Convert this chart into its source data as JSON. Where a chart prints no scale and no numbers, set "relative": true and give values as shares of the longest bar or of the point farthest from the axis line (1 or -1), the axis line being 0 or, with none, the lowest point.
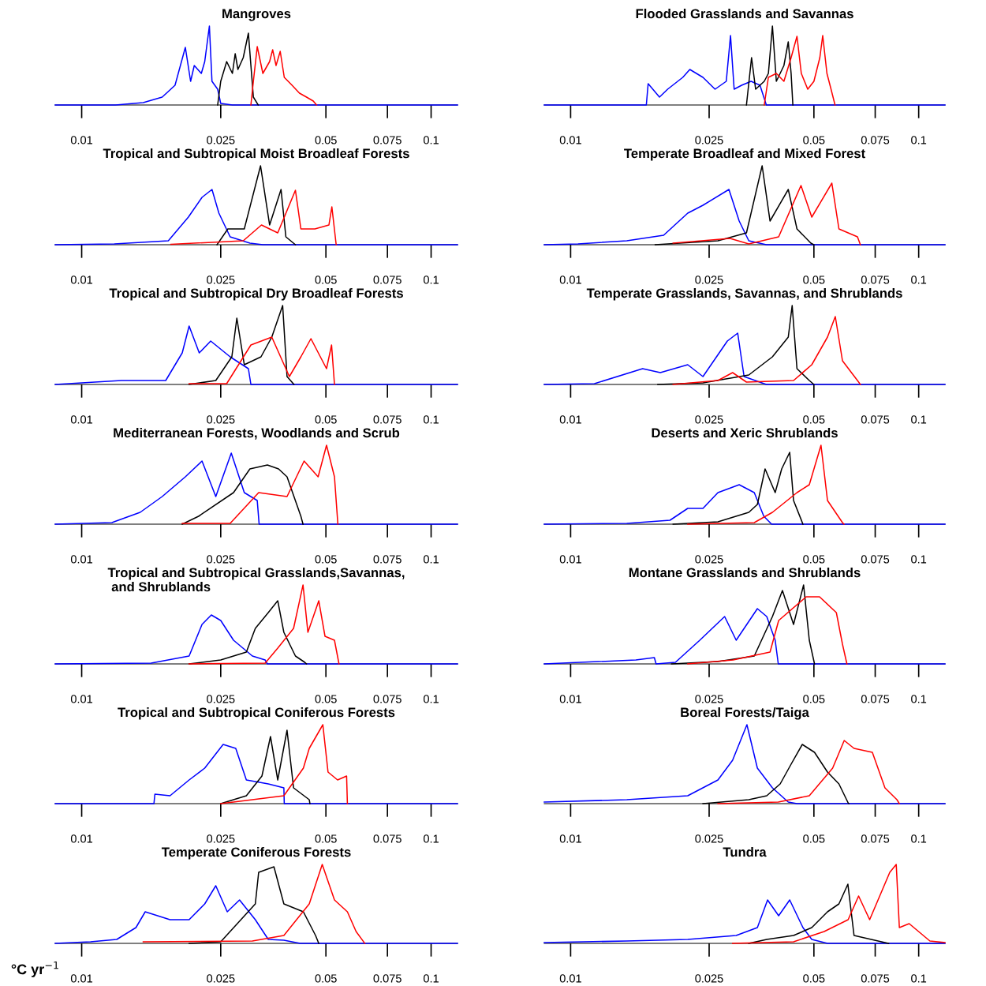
{
  "chart_data": [
    {
      "type": "line",
      "title": "Mangroves",
      "relative": true,
      "log": "x",
      "xlim": [
        0.0084,
        0.119
      ],
      "xticks": [
        0.01,
        0.025,
        0.05,
        0.075,
        0.1
      ],
      "series": [
        {
          "color": "#0000ff",
          "x": [
            0.0084,
            0.0125,
            0.015,
            0.017,
            0.0185,
            0.0198,
            0.0205,
            0.021,
            0.022,
            0.0225,
            0.0232,
            0.0236,
            0.0245,
            0.025,
            0.027,
            0.119
          ],
          "values": [
            0,
            0,
            0.03,
            0.1,
            0.25,
            0.73,
            0.3,
            0.5,
            0.4,
            0.55,
            1.0,
            0.3,
            0.2,
            0.02,
            0,
            0
          ]
        },
        {
          "color": "#000000",
          "x": [
            0.0245,
            0.025,
            0.026,
            0.027,
            0.0275,
            0.028,
            0.029,
            0.03,
            0.0305,
            0.031,
            0.032
          ],
          "values": [
            0,
            0.3,
            0.55,
            0.4,
            0.65,
            0.45,
            0.6,
            0.91,
            0.5,
            0.1,
            0
          ]
        },
        {
          "color": "#ff0000",
          "x": [
            0.0305,
            0.031,
            0.0318,
            0.033,
            0.0345,
            0.0352,
            0.036,
            0.037,
            0.038,
            0.04,
            0.042,
            0.044,
            0.046,
            0.047
          ],
          "values": [
            0,
            0.3,
            0.74,
            0.4,
            0.55,
            0.7,
            0.5,
            0.68,
            0.35,
            0.25,
            0.15,
            0.1,
            0.05,
            0
          ]
        }
      ]
    },
    {
      "type": "line",
      "title": "Flooded Grasslands and Savannas",
      "relative": true,
      "log": "x",
      "xlim": [
        0.0084,
        0.119
      ],
      "xticks": [
        0.01,
        0.025,
        0.05,
        0.075,
        0.1
      ],
      "series": [
        {
          "color": "#0000ff",
          "x": [
            0.0084,
            0.0165,
            0.0167,
            0.018,
            0.019,
            0.021,
            0.022,
            0.024,
            0.026,
            0.028,
            0.0288,
            0.0295,
            0.031,
            0.033,
            0.035,
            0.0365,
            0.119
          ],
          "values": [
            0,
            0,
            0.27,
            0.1,
            0.2,
            0.35,
            0.45,
            0.35,
            0.2,
            0.3,
            0.88,
            0.2,
            0.25,
            0.3,
            0.25,
            0,
            0
          ]
        },
        {
          "color": "#000000",
          "x": [
            0.032,
            0.0331,
            0.034,
            0.036,
            0.037,
            0.038,
            0.039,
            0.041,
            0.0422,
            0.043,
            0.0435
          ],
          "values": [
            0,
            0.6,
            0.2,
            0.3,
            0.4,
            1.0,
            0.3,
            0.5,
            0.8,
            0.4,
            0
          ]
        },
        {
          "color": "#ff0000",
          "x": [
            0.036,
            0.037,
            0.039,
            0.041,
            0.043,
            0.0447,
            0.046,
            0.048,
            0.05,
            0.052,
            0.053,
            0.0545,
            0.056,
            0.0575
          ],
          "values": [
            0,
            0.35,
            0.4,
            0.3,
            0.6,
            0.87,
            0.4,
            0.2,
            0.3,
            0.6,
            0.88,
            0.4,
            0.2,
            0
          ]
        }
      ]
    },
    {
      "type": "line",
      "title": "Tropical and Subtropical Moist Broadleaf Forests",
      "relative": true,
      "log": "x",
      "xlim": [
        0.0084,
        0.119
      ],
      "xticks": [
        0.01,
        0.025,
        0.05,
        0.075,
        0.1
      ],
      "series": [
        {
          "color": "#0000ff",
          "x": [
            0.0084,
            0.0124,
            0.0177,
            0.0202,
            0.0221,
            0.0236,
            0.0247,
            0.0266,
            0.0303,
            0.033,
            0.119
          ],
          "values": [
            0,
            0.01,
            0.05,
            0.35,
            0.6,
            0.7,
            0.4,
            0.1,
            0.02,
            0,
            0
          ]
        },
        {
          "color": "#000000",
          "x": [
            0.0244,
            0.0262,
            0.0292,
            0.0325,
            0.0345,
            0.0372,
            0.0384,
            0.0409
          ],
          "values": [
            0,
            0.2,
            0.2,
            1.0,
            0.25,
            0.7,
            0.1,
            0
          ]
        },
        {
          "color": "#ff0000",
          "x": [
            0.018,
            0.029,
            0.0327,
            0.0364,
            0.0409,
            0.0424,
            0.0465,
            0.051,
            0.052,
            0.0535
          ],
          "values": [
            0.005,
            0.05,
            0.25,
            0.15,
            0.69,
            0.2,
            0.2,
            0.25,
            0.48,
            0
          ]
        }
      ]
    },
    {
      "type": "line",
      "title": "Temperate Broadleaf and Mixed Forest",
      "relative": true,
      "log": "x",
      "xlim": [
        0.0084,
        0.119
      ],
      "xticks": [
        0.01,
        0.025,
        0.05,
        0.075,
        0.1
      ],
      "series": [
        {
          "color": "#0000ff",
          "x": [
            0.0084,
            0.0105,
            0.0145,
            0.0185,
            0.0217,
            0.024,
            0.0285,
            0.0305,
            0.0325,
            0.0365,
            0.119
          ],
          "values": [
            0,
            0.01,
            0.05,
            0.12,
            0.4,
            0.5,
            0.7,
            0.3,
            0.05,
            0,
            0
          ]
        },
        {
          "color": "#000000",
          "x": [
            0.0175,
            0.0265,
            0.032,
            0.0355,
            0.0374,
            0.0422,
            0.0447,
            0.049,
            0.05
          ],
          "values": [
            0,
            0.05,
            0.15,
            1.0,
            0.3,
            0.7,
            0.2,
            0.02,
            0
          ]
        },
        {
          "color": "#ff0000",
          "x": [
            0.0197,
            0.0287,
            0.0325,
            0.0396,
            0.0459,
            0.0493,
            0.0563,
            0.059,
            0.0667,
            0.068
          ],
          "values": [
            0.02,
            0.08,
            0.01,
            0.1,
            0.75,
            0.35,
            0.78,
            0.2,
            0.1,
            0
          ]
        }
      ]
    },
    {
      "type": "line",
      "title": "Tropical and Subtropical Dry Broadleaf Forests",
      "relative": true,
      "log": "x",
      "xlim": [
        0.0084,
        0.119
      ],
      "xticks": [
        0.01,
        0.025,
        0.05,
        0.075,
        0.1
      ],
      "series": [
        {
          "color": "#0000ff",
          "x": [
            0.0084,
            0.013,
            0.0174,
            0.0194,
            0.0203,
            0.0217,
            0.0234,
            0.0266,
            0.03,
            0.0305,
            0.119
          ],
          "values": [
            0,
            0.05,
            0.05,
            0.4,
            0.74,
            0.4,
            0.55,
            0.35,
            0.2,
            0,
            0
          ]
        },
        {
          "color": "#000000",
          "x": [
            0.0203,
            0.0242,
            0.0269,
            0.0278,
            0.0292,
            0.0326,
            0.035,
            0.0376,
            0.0387,
            0.0405
          ],
          "values": [
            0,
            0.05,
            0.35,
            0.84,
            0.25,
            0.35,
            0.6,
            1.0,
            0.1,
            0
          ]
        },
        {
          "color": "#ff0000",
          "x": [
            0.0203,
            0.026,
            0.0305,
            0.035,
            0.0393,
            0.0424,
            0.0453,
            0.0502,
            0.0519,
            0.0529
          ],
          "values": [
            0.01,
            0.01,
            0.5,
            0.6,
            0.1,
            0.35,
            0.58,
            0.2,
            0.5,
            0
          ]
        }
      ]
    },
    {
      "type": "line",
      "title": "Temperate Grasslands, Savannas, and Shrublands",
      "relative": true,
      "log": "x",
      "xlim": [
        0.0084,
        0.119
      ],
      "xticks": [
        0.01,
        0.025,
        0.05,
        0.075,
        0.1
      ],
      "series": [
        {
          "color": "#0000ff",
          "x": [
            0.0084,
            0.0117,
            0.0161,
            0.0181,
            0.0217,
            0.024,
            0.0282,
            0.0302,
            0.0315,
            0.0365,
            0.119
          ],
          "values": [
            0,
            0.01,
            0.2,
            0.15,
            0.25,
            0.1,
            0.55,
            0.65,
            0.1,
            0,
            0
          ]
        },
        {
          "color": "#000000",
          "x": [
            0.0178,
            0.024,
            0.0325,
            0.038,
            0.0422,
            0.0433,
            0.0447,
            0.0485,
            0.05
          ],
          "values": [
            0,
            0.02,
            0.12,
            0.35,
            0.6,
            1.0,
            0.2,
            0.05,
            0
          ]
        },
        {
          "color": "#ff0000",
          "x": [
            0.0197,
            0.0265,
            0.0292,
            0.032,
            0.0437,
            0.0493,
            0.0547,
            0.0576,
            0.0604,
            0.0667,
            0.068
          ],
          "values": [
            0,
            0.05,
            0.15,
            0.03,
            0.05,
            0.25,
            0.6,
            0.86,
            0.3,
            0.05,
            0
          ]
        }
      ]
    },
    {
      "type": "line",
      "title": "Mediterranean Forests, Woodlands and Scrub",
      "relative": true,
      "log": "x",
      "xlim": [
        0.0084,
        0.119
      ],
      "xticks": [
        0.01,
        0.025,
        0.05,
        0.075,
        0.1
      ],
      "series": [
        {
          "color": "#0000ff",
          "x": [
            0.0084,
            0.0122,
            0.0147,
            0.017,
            0.0198,
            0.0221,
            0.0242,
            0.0268,
            0.0292,
            0.0318,
            0.0322,
            0.119
          ],
          "values": [
            0,
            0.02,
            0.15,
            0.35,
            0.6,
            0.8,
            0.35,
            0.9,
            0.4,
            0.3,
            0,
            0
          ]
        },
        {
          "color": "#000000",
          "x": [
            0.0194,
            0.0216,
            0.0272,
            0.0303,
            0.034,
            0.0366,
            0.0387,
            0.0424,
            0.043
          ],
          "values": [
            0,
            0.1,
            0.4,
            0.7,
            0.75,
            0.7,
            0.6,
            0.1,
            0
          ]
        },
        {
          "color": "#ff0000",
          "x": [
            0.0194,
            0.0266,
            0.0321,
            0.0387,
            0.0433,
            0.0475,
            0.0502,
            0.0529,
            0.0541
          ],
          "values": [
            0.01,
            0.01,
            0.4,
            0.35,
            0.8,
            0.6,
            1.0,
            0.6,
            0
          ]
        }
      ]
    },
    {
      "type": "line",
      "title": "Deserts and Xeric Shrublands",
      "relative": true,
      "log": "x",
      "xlim": [
        0.0084,
        0.119
      ],
      "xticks": [
        0.01,
        0.025,
        0.05,
        0.075,
        0.1
      ],
      "series": [
        {
          "color": "#0000ff",
          "x": [
            0.0084,
            0.0145,
            0.0193,
            0.0217,
            0.024,
            0.0265,
            0.0305,
            0.0337,
            0.0359,
            0.0378,
            0.119
          ],
          "values": [
            0,
            0.01,
            0.05,
            0.2,
            0.2,
            0.4,
            0.5,
            0.4,
            0.1,
            0,
            0
          ]
        },
        {
          "color": "#000000",
          "x": [
            0.0197,
            0.0265,
            0.0325,
            0.0344,
            0.0362,
            0.0387,
            0.0404,
            0.0426,
            0.0437,
            0.0465
          ],
          "values": [
            0,
            0.03,
            0.15,
            0.25,
            0.7,
            0.4,
            0.7,
            0.91,
            0.3,
            0
          ]
        },
        {
          "color": "#ff0000",
          "x": [
            0.0217,
            0.0337,
            0.038,
            0.0447,
            0.0485,
            0.0524,
            0.0547,
            0.0604,
            0.061
          ],
          "values": [
            0,
            0.02,
            0.15,
            0.4,
            0.5,
            1.0,
            0.3,
            0.02,
            0
          ]
        }
      ]
    },
    {
      "type": "line",
      "title": "Tropical and Subtropical Grasslands,Savannas,\n and Shrublands",
      "relative": true,
      "log": "x",
      "xlim": [
        0.0084,
        0.119
      ],
      "xticks": [
        0.01,
        0.025,
        0.05,
        0.075,
        0.1
      ],
      "series": [
        {
          "color": "#0000ff",
          "x": [
            0.0084,
            0.0158,
            0.0203,
            0.0221,
            0.0235,
            0.025,
            0.0272,
            0.0308,
            0.0335,
            0.034,
            0.119
          ],
          "values": [
            0,
            0.01,
            0.1,
            0.5,
            0.62,
            0.55,
            0.3,
            0.1,
            0.05,
            0,
            0
          ]
        },
        {
          "color": "#000000",
          "x": [
            0.0203,
            0.025,
            0.0296,
            0.0314,
            0.0342,
            0.0364,
            0.0379,
            0.0409,
            0.0435,
            0.044
          ],
          "values": [
            0,
            0.05,
            0.15,
            0.45,
            0.65,
            0.8,
            0.4,
            0.1,
            0.02,
            0
          ]
        },
        {
          "color": "#ff0000",
          "x": [
            0.0203,
            0.0335,
            0.0364,
            0.0404,
            0.043,
            0.0444,
            0.0477,
            0.0497,
            0.0529,
            0.0545
          ],
          "values": [
            0,
            0.01,
            0.2,
            0.45,
            1.0,
            0.4,
            0.8,
            0.35,
            0.3,
            0
          ]
        }
      ]
    },
    {
      "type": "line",
      "title": "Montane Grasslands and Shrublands",
      "relative": true,
      "log": "x",
      "xlim": [
        0.0084,
        0.119
      ],
      "xticks": [
        0.01,
        0.025,
        0.05,
        0.075,
        0.1
      ],
      "series": [
        {
          "color": "#0000ff",
          "x": [
            0.0084,
            0.0154,
            0.0174,
            0.0176,
            0.02,
            0.0235,
            0.0277,
            0.0299,
            0.0344,
            0.0366,
            0.0387,
            0.0395,
            0.119
          ],
          "values": [
            0,
            0.05,
            0.08,
            0,
            0.02,
            0.3,
            0.6,
            0.3,
            0.7,
            0.6,
            0.3,
            0,
            0
          ]
        },
        {
          "color": "#000000",
          "x": [
            0.0195,
            0.0265,
            0.0337,
            0.038,
            0.0406,
            0.0437,
            0.0467,
            0.0485,
            0.0502
          ],
          "values": [
            0,
            0.03,
            0.1,
            0.6,
            0.93,
            0.5,
            1.0,
            0.3,
            0
          ]
        },
        {
          "color": "#ff0000",
          "x": [
            0.0217,
            0.0293,
            0.0374,
            0.0396,
            0.0475,
            0.0519,
            0.058,
            0.0604,
            0.0622
          ],
          "values": [
            0,
            0.05,
            0.15,
            0.55,
            0.85,
            0.85,
            0.65,
            0.25,
            0
          ]
        }
      ]
    },
    {
      "type": "line",
      "title": "Tropical and Subtropical Coniferous Forests",
      "relative": true,
      "log": "x",
      "xlim": [
        0.0084,
        0.119
      ],
      "xticks": [
        0.01,
        0.025,
        0.05,
        0.075,
        0.1
      ],
      "series": [
        {
          "color": "#0000ff",
          "x": [
            0.0084,
            0.0161,
            0.0162,
            0.0179,
            0.0203,
            0.0225,
            0.0254,
            0.0276,
            0.0296,
            0.0342,
            0.0379,
            0.038,
            0.119
          ],
          "values": [
            0,
            0,
            0.12,
            0.1,
            0.3,
            0.45,
            0.75,
            0.7,
            0.3,
            0.25,
            0.2,
            0,
            0
          ]
        },
        {
          "color": "#000000",
          "x": [
            0.025,
            0.0296,
            0.0328,
            0.0347,
            0.0364,
            0.0387,
            0.0404,
            0.0448,
            0.045
          ],
          "values": [
            0,
            0.1,
            0.35,
            0.85,
            0.3,
            0.93,
            0.2,
            0.05,
            0
          ]
        },
        {
          "color": "#ff0000",
          "x": [
            0.025,
            0.0379,
            0.0431,
            0.0448,
            0.049,
            0.0507,
            0.054,
            0.0573,
            0.0576
          ],
          "values": [
            0,
            0.1,
            0.45,
            0.7,
            1.0,
            0.4,
            0.3,
            0.35,
            0
          ]
        }
      ]
    },
    {
      "type": "line",
      "title": "Boreal Forests/Taiga",
      "relative": true,
      "log": "x",
      "xlim": [
        0.0084,
        0.119
      ],
      "xticks": [
        0.01,
        0.025,
        0.05,
        0.075,
        0.1
      ],
      "series": [
        {
          "color": "#0000ff",
          "x": [
            0.0084,
            0.0145,
            0.0217,
            0.0265,
            0.0292,
            0.0321,
            0.0344,
            0.038,
            0.0422,
            0.0447,
            0.119
          ],
          "values": [
            0.02,
            0.05,
            0.1,
            0.3,
            0.55,
            1.0,
            0.45,
            0.2,
            0.02,
            0,
            0
          ]
        },
        {
          "color": "#000000",
          "x": [
            0.024,
            0.0325,
            0.0366,
            0.04,
            0.043,
            0.0463,
            0.0502,
            0.0547,
            0.059,
            0.0627,
            0.063
          ],
          "values": [
            0,
            0.05,
            0.1,
            0.25,
            0.5,
            0.75,
            0.65,
            0.4,
            0.25,
            0.01,
            0
          ]
        },
        {
          "color": "#ff0000",
          "x": [
            0.0265,
            0.0395,
            0.0485,
            0.0566,
            0.0611,
            0.0652,
            0.0736,
            0.08,
            0.0866,
            0.088
          ],
          "values": [
            0,
            0.02,
            0.1,
            0.45,
            0.8,
            0.7,
            0.65,
            0.2,
            0.05,
            0
          ]
        }
      ]
    },
    {
      "type": "line",
      "title": "Temperate Coniferous Forests",
      "xlabel": "°C yr$^{−1}$",
      "relative": true,
      "log": "x",
      "xlim": [
        0.0084,
        0.119
      ],
      "xticks": [
        0.01,
        0.025,
        0.05,
        0.075,
        0.1
      ],
      "series": [
        {
          "color": "#0000ff",
          "x": [
            0.0084,
            0.0106,
            0.0126,
            0.0143,
            0.0152,
            0.0179,
            0.0203,
            0.0225,
            0.0242,
            0.0261,
            0.0283,
            0.0314,
            0.0342,
            0.0379,
            0.0422,
            0.119
          ],
          "values": [
            0,
            0.02,
            0.05,
            0.2,
            0.4,
            0.3,
            0.3,
            0.5,
            0.73,
            0.4,
            0.55,
            0.3,
            0.05,
            0.04,
            0,
            0
          ]
        },
        {
          "color": "#000000",
          "x": [
            0.0203,
            0.025,
            0.0314,
            0.0321,
            0.0355,
            0.0379,
            0.0431,
            0.0467,
            0.0477
          ],
          "values": [
            0,
            0.02,
            0.5,
            0.9,
            0.97,
            0.5,
            0.4,
            0.1,
            0
          ]
        },
        {
          "color": "#ff0000",
          "x": [
            0.015,
            0.0308,
            0.0379,
            0.0448,
            0.0488,
            0.0529,
            0.0576,
            0.061,
            0.0646
          ],
          "values": [
            0.02,
            0.03,
            0.1,
            0.5,
            1.0,
            0.55,
            0.4,
            0.15,
            0
          ]
        }
      ]
    },
    {
      "type": "line",
      "title": "Tundra",
      "relative": true,
      "log": "x",
      "xlim": [
        0.0084,
        0.119
      ],
      "xticks": [
        0.01,
        0.025,
        0.05,
        0.075,
        0.1
      ],
      "series": [
        {
          "color": "#0000ff",
          "x": [
            0.0084,
            0.0145,
            0.0217,
            0.0299,
            0.0344,
            0.0368,
            0.0396,
            0.0426,
            0.0465,
            0.0493,
            0.0547,
            0.119
          ],
          "values": [
            0.01,
            0.03,
            0.05,
            0.1,
            0.2,
            0.55,
            0.35,
            0.55,
            0.2,
            0.05,
            0,
            0
          ]
        },
        {
          "color": "#000000",
          "x": [
            0.0325,
            0.0366,
            0.0437,
            0.0493,
            0.0547,
            0.059,
            0.0626,
            0.0652,
            0.08,
            0.082
          ],
          "values": [
            0,
            0.05,
            0.1,
            0.2,
            0.4,
            0.5,
            0.75,
            0.1,
            0.01,
            0
          ]
        },
        {
          "color": "#ff0000",
          "x": [
            0.0292,
            0.0437,
            0.0535,
            0.0627,
            0.0672,
            0.0723,
            0.0826,
            0.0862,
            0.088,
            0.0939,
            0.1077,
            0.119
          ],
          "values": [
            0,
            0.02,
            0.15,
            0.3,
            0.6,
            0.3,
            0.9,
            1.0,
            0.2,
            0.25,
            0.03,
            0.01
          ]
        }
      ]
    }
  ]
}
